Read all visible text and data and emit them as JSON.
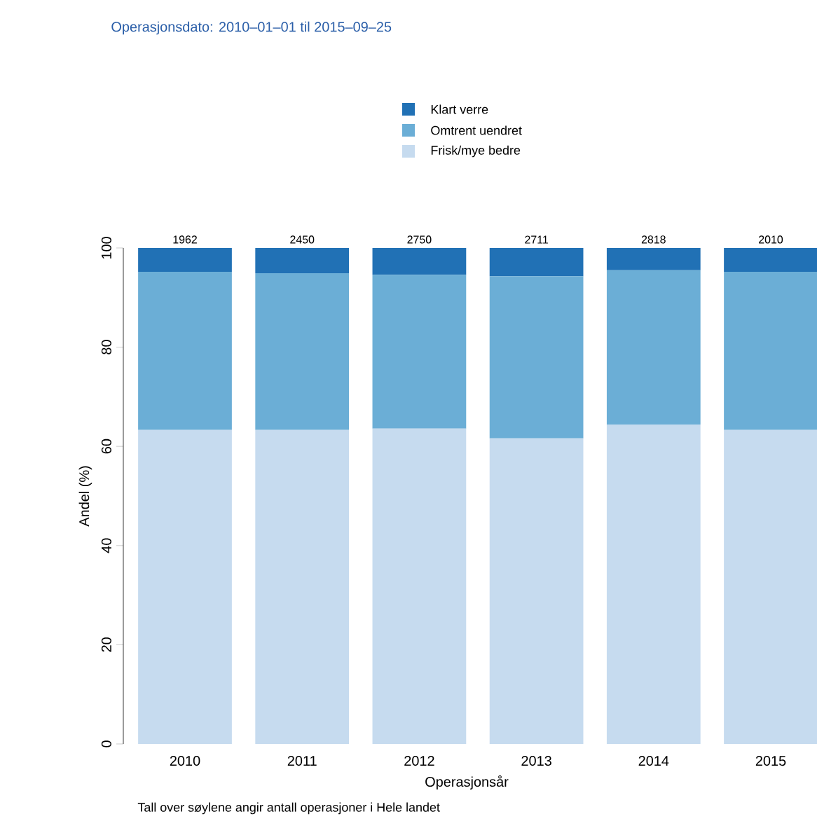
{
  "chart_data": {
    "type": "bar",
    "stacked": true,
    "title": "Operasjonsdato: 2010–01–01 til 2015–09–25",
    "xlabel": "Operasjonsår",
    "ylabel": "Andel (%)",
    "categories": [
      "2010",
      "2011",
      "2012",
      "2013",
      "2014",
      "2015"
    ],
    "series": [
      {
        "name": "Frisk/mye bedre",
        "color": "#c6dbef",
        "values": [
          63.3,
          63.3,
          63.6,
          61.6,
          64.4,
          63.3
        ]
      },
      {
        "name": "Omtrent uendret",
        "color": "#6baed6",
        "values": [
          31.9,
          31.6,
          31.0,
          32.7,
          31.1,
          31.9
        ]
      },
      {
        "name": "Klart verre",
        "color": "#2171b5",
        "values": [
          4.8,
          5.1,
          5.4,
          5.7,
          4.5,
          4.8
        ]
      }
    ],
    "ylim": [
      0,
      100
    ],
    "yticks": [
      0,
      20,
      40,
      60,
      80,
      100
    ],
    "legend": "top",
    "annotations": [
      {
        "text": "1962",
        "x": "2010",
        "y": 100
      },
      {
        "text": "2450",
        "x": "2011",
        "y": 100
      },
      {
        "text": "2750",
        "x": "2012",
        "y": 100
      },
      {
        "text": "2711",
        "x": "2013",
        "y": 100
      },
      {
        "text": "2818",
        "x": "2014",
        "y": 100
      },
      {
        "text": "2010",
        "x": "2015",
        "y": 100
      },
      "Tall over søylene angir antall operasjoner i Hele landet"
    ]
  }
}
